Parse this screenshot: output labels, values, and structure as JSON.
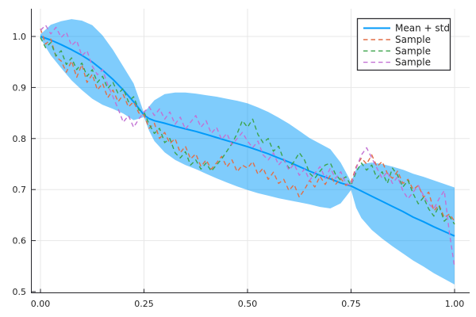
{
  "chart_data": {
    "type": "line",
    "title": "",
    "xlabel": "",
    "ylabel": "",
    "xlim": [
      -0.023,
      1.036
    ],
    "ylim": [
      0.5,
      1.056
    ],
    "grid": true,
    "background": "#FFFFFF",
    "grid_color": "#E7E7E7",
    "axis_color": "#26262B",
    "x_ticks": {
      "values": [
        0,
        0.25,
        0.5,
        0.75,
        1.0
      ],
      "labels": [
        "0.00",
        "0.25",
        "0.50",
        "0.75",
        "1.00"
      ]
    },
    "y_ticks": {
      "values": [
        0.5,
        0.6,
        0.7,
        0.8,
        0.9,
        1.0
      ],
      "labels": [
        "0.5",
        "0.6",
        "0.7",
        "0.8",
        "0.9",
        "1.0"
      ]
    },
    "legend": {
      "position": "top-right",
      "border_color": "#2E2E33",
      "entries": [
        {
          "label": "Mean + std",
          "color": "#009AFA",
          "dash": false
        },
        {
          "label": "Sample",
          "color": "#E26E46",
          "dash": true
        },
        {
          "label": "Sample",
          "color": "#3DA44D",
          "dash": true
        },
        {
          "label": "Sample",
          "color": "#C271D4",
          "dash": true
        }
      ]
    },
    "mean_series": {
      "name": "Mean + std",
      "color": "#009AFA",
      "ribbon_fill": "#009AFA",
      "ribbon_opacity": 0.5,
      "x": [
        0.0,
        0.025,
        0.05,
        0.075,
        0.1,
        0.125,
        0.15,
        0.175,
        0.2,
        0.225,
        0.2375,
        0.25,
        0.2625,
        0.275,
        0.3,
        0.325,
        0.35,
        0.375,
        0.4,
        0.425,
        0.45,
        0.475,
        0.5,
        0.525,
        0.55,
        0.575,
        0.6,
        0.625,
        0.65,
        0.675,
        0.7,
        0.725,
        0.7375,
        0.75,
        0.7625,
        0.775,
        0.8,
        0.825,
        0.85,
        0.875,
        0.9,
        0.925,
        0.95,
        0.975,
        1.0
      ],
      "mean": [
        1.0,
        0.993,
        0.984,
        0.974,
        0.963,
        0.95,
        0.934,
        0.916,
        0.895,
        0.872,
        0.859,
        0.846,
        0.839,
        0.835,
        0.83,
        0.824,
        0.819,
        0.814,
        0.808,
        0.802,
        0.796,
        0.79,
        0.784,
        0.777,
        0.77,
        0.762,
        0.754,
        0.745,
        0.736,
        0.728,
        0.721,
        0.713,
        0.71,
        0.707,
        0.702,
        0.697,
        0.687,
        0.677,
        0.667,
        0.657,
        0.646,
        0.637,
        0.627,
        0.618,
        0.609
      ],
      "std": [
        0.004,
        0.03,
        0.046,
        0.06,
        0.068,
        0.072,
        0.068,
        0.058,
        0.046,
        0.036,
        0.02,
        0.004,
        0.024,
        0.04,
        0.057,
        0.066,
        0.071,
        0.074,
        0.077,
        0.08,
        0.082,
        0.084,
        0.085,
        0.084,
        0.082,
        0.079,
        0.075,
        0.07,
        0.065,
        0.062,
        0.058,
        0.04,
        0.024,
        0.008,
        0.038,
        0.053,
        0.066,
        0.073,
        0.078,
        0.082,
        0.085,
        0.088,
        0.091,
        0.093,
        0.095
      ]
    },
    "samples": {
      "x_start": 0,
      "x_step": 0.0125,
      "series": [
        {
          "name": "Sample",
          "color": "#E26E46",
          "y": [
            1.015,
            0.985,
            0.995,
            0.96,
            0.952,
            0.93,
            0.952,
            0.92,
            0.945,
            0.91,
            0.926,
            0.895,
            0.908,
            0.88,
            0.895,
            0.872,
            0.886,
            0.862,
            0.872,
            0.85,
            0.846,
            0.82,
            0.83,
            0.8,
            0.812,
            0.79,
            0.8,
            0.772,
            0.785,
            0.76,
            0.77,
            0.745,
            0.758,
            0.74,
            0.752,
            0.765,
            0.744,
            0.758,
            0.735,
            0.748,
            0.742,
            0.755,
            0.73,
            0.742,
            0.72,
            0.734,
            0.712,
            0.72,
            0.698,
            0.71,
            0.685,
            0.7,
            0.718,
            0.705,
            0.726,
            0.71,
            0.728,
            0.71,
            0.722,
            0.708,
            0.714,
            0.745,
            0.762,
            0.75,
            0.768,
            0.745,
            0.755,
            0.732,
            0.722,
            0.736,
            0.712,
            0.72,
            0.7,
            0.708,
            0.685,
            0.695,
            0.658,
            0.67,
            0.645,
            0.652,
            0.638
          ]
        },
        {
          "name": "Sample",
          "color": "#3DA44D",
          "y": [
            0.998,
            0.978,
            0.988,
            0.962,
            0.972,
            0.945,
            0.958,
            0.935,
            0.948,
            0.922,
            0.935,
            0.91,
            0.922,
            0.898,
            0.91,
            0.888,
            0.898,
            0.872,
            0.882,
            0.856,
            0.852,
            0.828,
            0.81,
            0.82,
            0.792,
            0.8,
            0.772,
            0.762,
            0.774,
            0.748,
            0.758,
            0.74,
            0.752,
            0.736,
            0.748,
            0.76,
            0.775,
            0.79,
            0.81,
            0.835,
            0.822,
            0.838,
            0.808,
            0.792,
            0.8,
            0.775,
            0.785,
            0.758,
            0.742,
            0.755,
            0.772,
            0.758,
            0.732,
            0.722,
            0.736,
            0.748,
            0.752,
            0.73,
            0.718,
            0.725,
            0.708,
            0.735,
            0.752,
            0.738,
            0.748,
            0.722,
            0.735,
            0.712,
            0.742,
            0.728,
            0.705,
            0.718,
            0.692,
            0.672,
            0.685,
            0.662,
            0.648,
            0.668,
            0.638,
            0.648,
            0.632
          ]
        },
        {
          "name": "Sample",
          "color": "#C271D4",
          "y": [
            1.012,
            1.022,
            1.005,
            1.018,
            0.998,
            1.008,
            0.982,
            0.992,
            0.962,
            0.972,
            0.942,
            0.925,
            0.935,
            0.905,
            0.882,
            0.858,
            0.832,
            0.845,
            0.822,
            0.838,
            0.852,
            0.862,
            0.845,
            0.858,
            0.838,
            0.852,
            0.828,
            0.842,
            0.818,
            0.832,
            0.845,
            0.822,
            0.835,
            0.81,
            0.822,
            0.798,
            0.81,
            0.788,
            0.8,
            0.812,
            0.795,
            0.782,
            0.795,
            0.768,
            0.758,
            0.772,
            0.748,
            0.76,
            0.738,
            0.75,
            0.728,
            0.74,
            0.718,
            0.732,
            0.745,
            0.722,
            0.742,
            0.722,
            0.735,
            0.712,
            0.708,
            0.742,
            0.768,
            0.782,
            0.762,
            0.742,
            0.722,
            0.735,
            0.712,
            0.725,
            0.698,
            0.682,
            0.695,
            0.708,
            0.688,
            0.672,
            0.662,
            0.682,
            0.698,
            0.615,
            0.548
          ]
        }
      ]
    }
  }
}
